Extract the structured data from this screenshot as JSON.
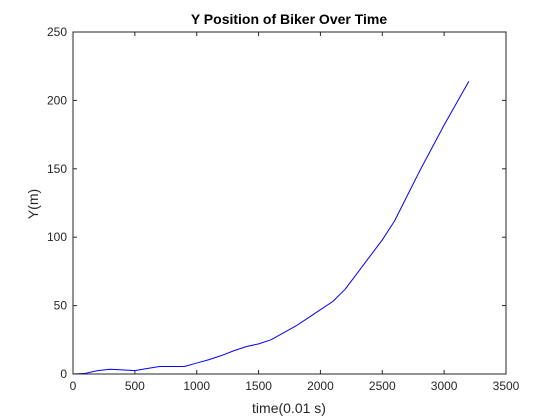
{
  "chart_data": {
    "type": "line",
    "title": "Y Position of Biker Over Time",
    "xlabel": "time(0.01 s)",
    "ylabel": "Y(m)",
    "xlim": [
      0,
      3500
    ],
    "ylim": [
      0,
      250
    ],
    "xticks": [
      0,
      500,
      1000,
      1500,
      2000,
      2500,
      3000,
      3500
    ],
    "yticks": [
      0,
      50,
      100,
      150,
      200,
      250
    ],
    "grid": false,
    "legend": "none",
    "series": [
      {
        "color": "#0000ff",
        "x": [
          0,
          100,
          200,
          300,
          400,
          500,
          600,
          700,
          800,
          900,
          1000,
          1100,
          1200,
          1300,
          1400,
          1500,
          1600,
          1700,
          1800,
          1900,
          2000,
          2100,
          2200,
          2300,
          2400,
          2500,
          2600,
          2700,
          2800,
          2900,
          3000,
          3100,
          3200
        ],
        "y": [
          0,
          0.5,
          2.5,
          3.5,
          3,
          2.5,
          4,
          5.5,
          5.5,
          5.5,
          8,
          10.5,
          13.5,
          17,
          20,
          22,
          25,
          30,
          35,
          41,
          47,
          53,
          62,
          74,
          86,
          98,
          112,
          130,
          148,
          165,
          182,
          198,
          214
        ]
      }
    ]
  }
}
